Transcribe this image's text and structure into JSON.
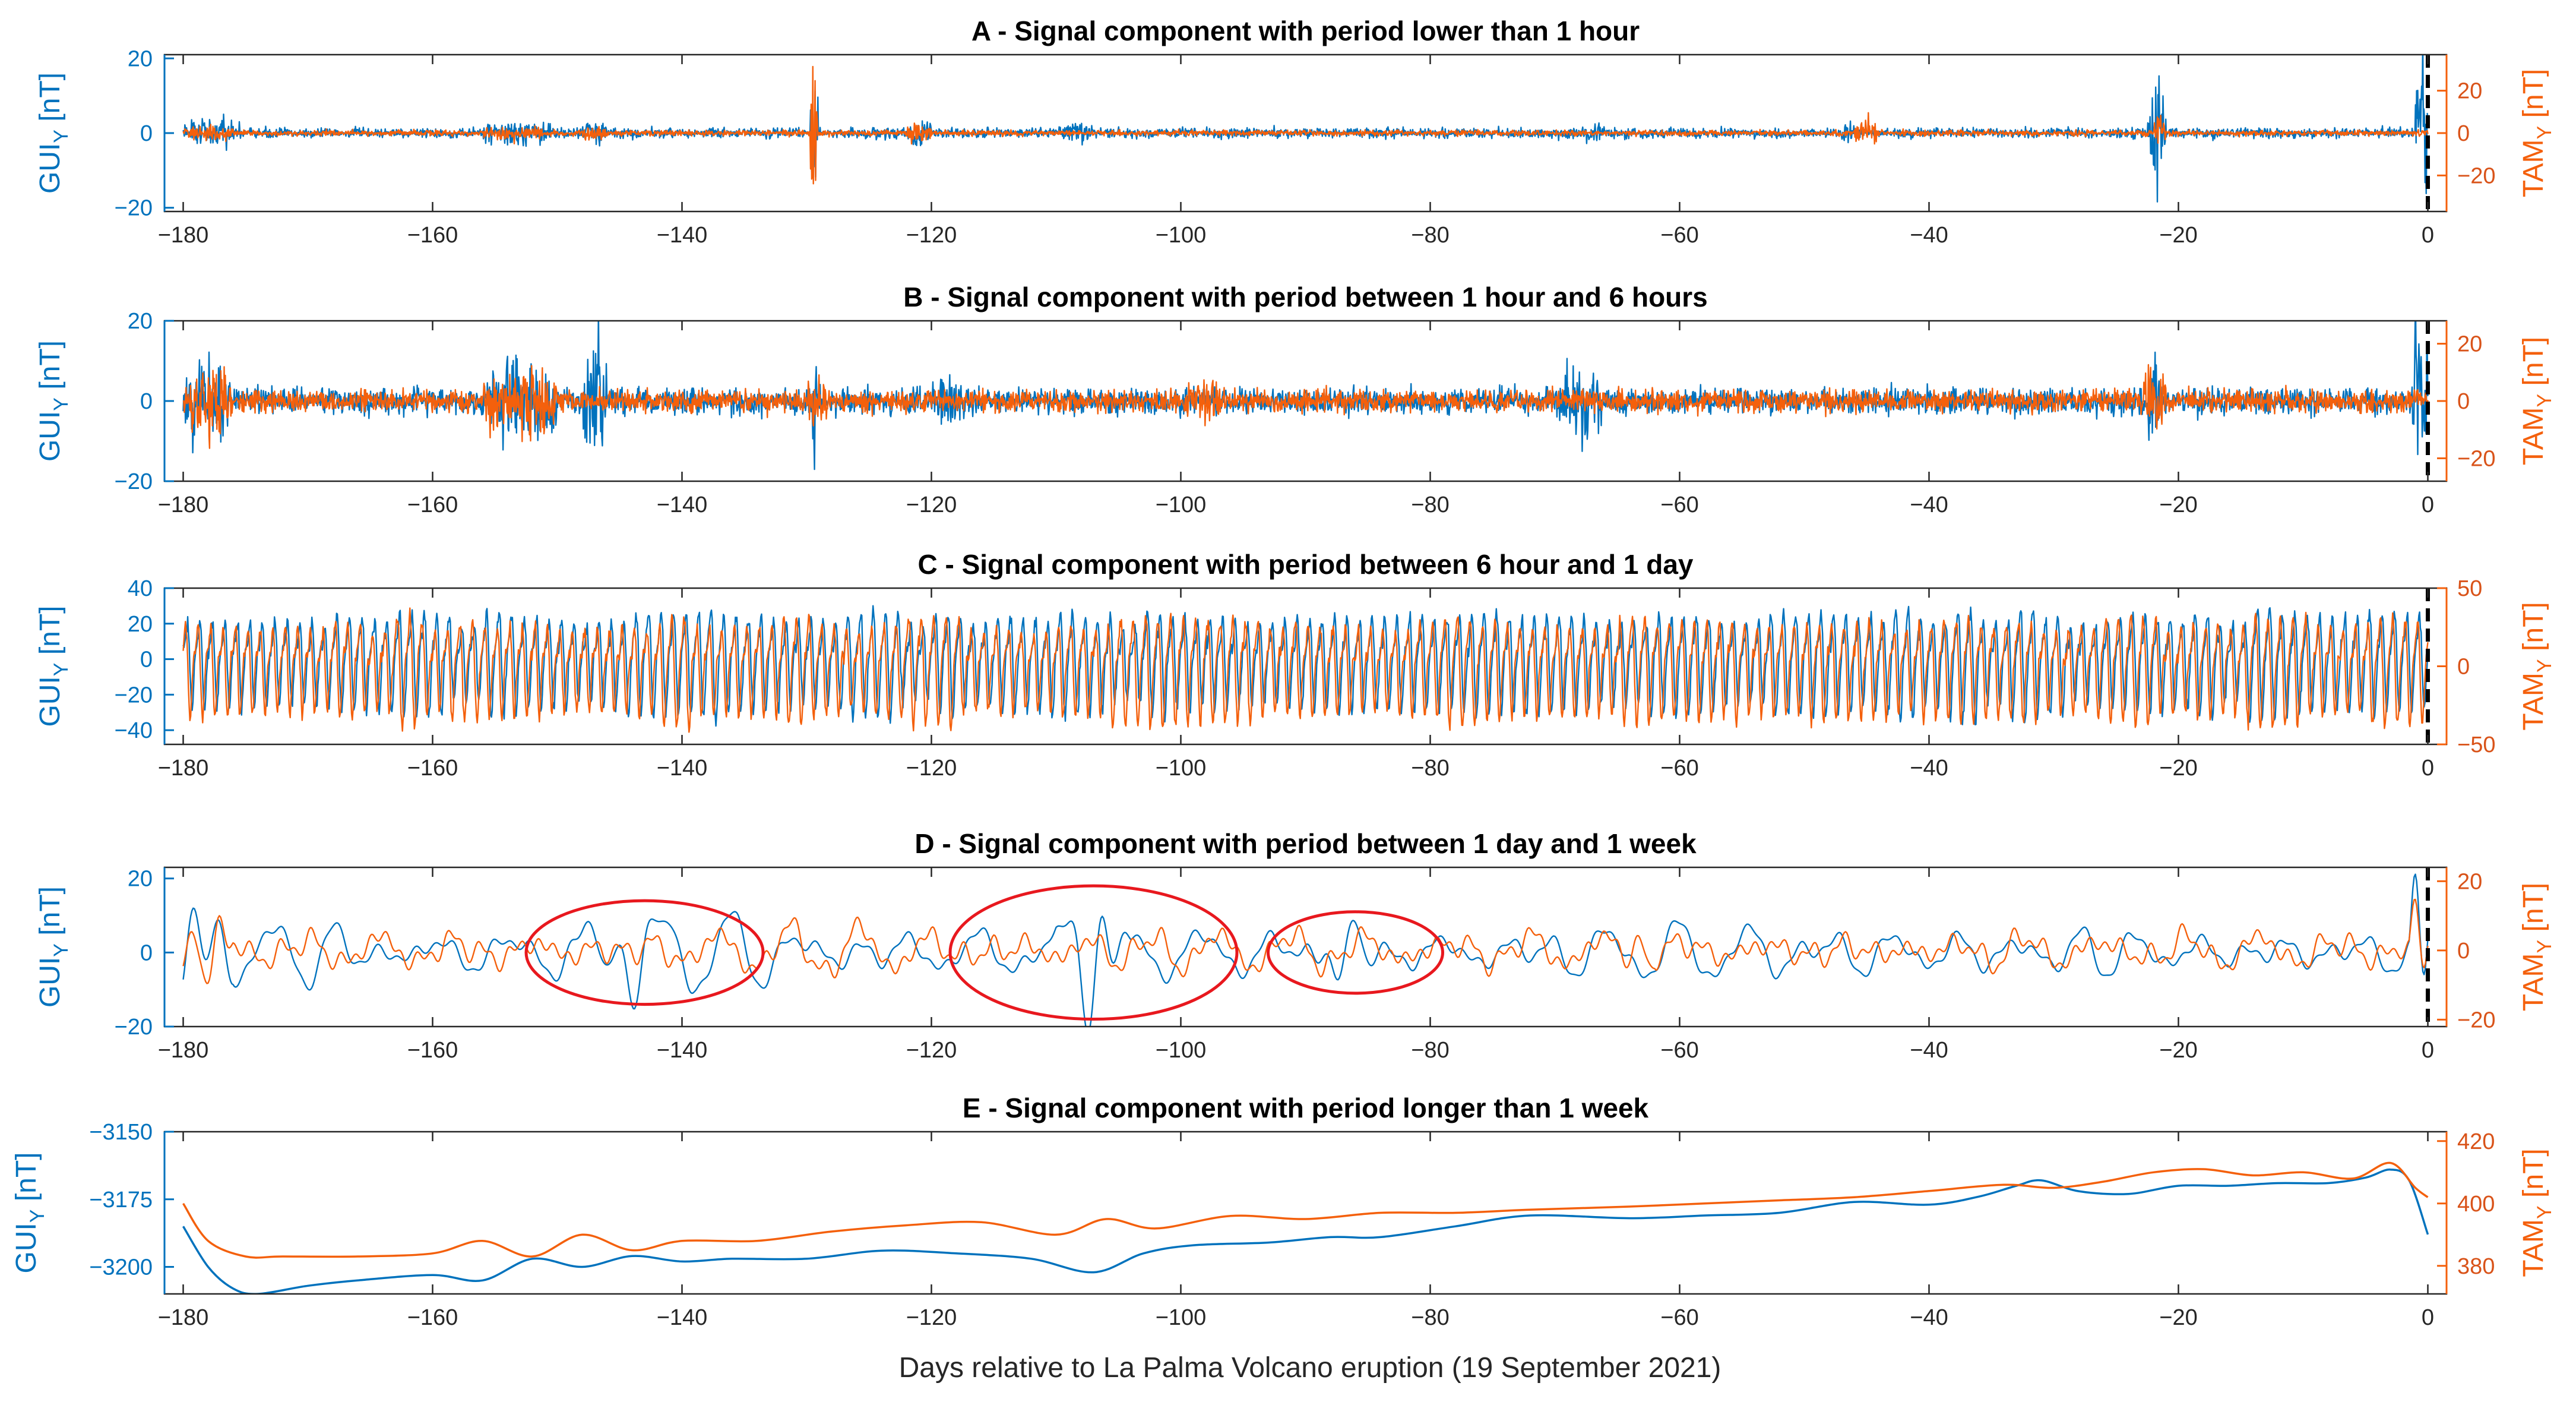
{
  "colors": {
    "gui": "#0072BD",
    "tam": "#F4600C",
    "highlight": "#E8181E",
    "marker": "#000000"
  },
  "ylabels": {
    "gui_main": "GUI",
    "tam_main": "TAM",
    "sub": "Y",
    "unit": " [nT]"
  },
  "xlabel": "Days relative to La Palma Volcano eruption (19 September 2021)",
  "chart_data": [
    {
      "type": "line",
      "title": "A - Signal component with period lower than 1 hour",
      "xlim": [
        -181.5,
        1.5
      ],
      "xticks": [
        -180,
        -160,
        -140,
        -120,
        -100,
        -80,
        -60,
        -40,
        -20,
        0
      ],
      "y_left": {
        "label": "GUIY [nT]",
        "lim": [
          -21,
          21
        ],
        "ticks": [
          -20,
          0,
          20
        ]
      },
      "y_right": {
        "label": "TAMY [nT]",
        "lim": [
          -37,
          37
        ],
        "ticks": [
          -20,
          0,
          20
        ]
      },
      "event_marker_x": 0,
      "series": [
        {
          "axis": "left",
          "style": "noise",
          "base": 0,
          "noise": 0.9,
          "osc": [],
          "bursts": [
            [
              -180,
              -175,
              3
            ],
            [
              -156,
              -150,
              2.5
            ],
            [
              -148,
              -146,
              2.2
            ],
            [
              -129.7,
              -129.1,
              20
            ],
            [
              -122,
              -120,
              2
            ],
            [
              -110,
              -107,
              1.8
            ],
            [
              -68,
              -66,
              2
            ],
            [
              -47,
              -46,
              2.6
            ],
            [
              -22.5,
              -21,
              12
            ],
            [
              -1,
              0,
              16
            ]
          ]
        },
        {
          "axis": "right",
          "style": "noise",
          "base": 0,
          "noise": 0.9,
          "osc": [],
          "bursts": [
            [
              -180,
              -176,
              3
            ],
            [
              -156,
              -151,
              3
            ],
            [
              -148,
              -146,
              3
            ],
            [
              -129.7,
              -129.1,
              30
            ],
            [
              -122,
              -120,
              4
            ],
            [
              -46,
              -44,
              5
            ],
            [
              -22,
              -21,
              7
            ]
          ]
        }
      ]
    },
    {
      "type": "line",
      "title": "B - Signal component with period between 1 hour and 6 hours",
      "xlim": [
        -181.5,
        1.5
      ],
      "xticks": [
        -180,
        -160,
        -140,
        -120,
        -100,
        -80,
        -60,
        -40,
        -20,
        0
      ],
      "y_left": {
        "label": "GUIY [nT]",
        "lim": [
          -20,
          20
        ],
        "ticks": [
          -20,
          0,
          20
        ]
      },
      "y_right": {
        "label": "TAMY [nT]",
        "lim": [
          -28,
          28
        ],
        "ticks": [
          -20,
          0,
          20
        ]
      },
      "event_marker_x": 0,
      "series": [
        {
          "axis": "left",
          "style": "noise",
          "base": 0,
          "noise": 2.2,
          "osc": [],
          "bursts": [
            [
              -180,
              -176,
              7
            ],
            [
              -156,
              -150,
              8
            ],
            [
              -148,
              -146,
              12
            ],
            [
              -129.6,
              -129.2,
              18
            ],
            [
              -120,
              -116,
              4
            ],
            [
              -70,
              -66,
              6
            ],
            [
              -22.5,
              -21.5,
              9
            ],
            [
              -1.5,
              0,
              14
            ]
          ]
        },
        {
          "axis": "right",
          "style": "noise",
          "base": 0,
          "noise": 2.6,
          "osc": [],
          "bursts": [
            [
              -180,
              -176,
              9
            ],
            [
              -156,
              -150,
              9
            ],
            [
              -130,
              -128,
              7
            ],
            [
              -100,
              -96,
              4
            ],
            [
              -23,
              -21,
              8
            ]
          ]
        }
      ]
    },
    {
      "type": "line",
      "title": "C - Signal component with period between 6 hour and 1 day",
      "xlim": [
        -181.5,
        1.5
      ],
      "xticks": [
        -180,
        -160,
        -140,
        -120,
        -100,
        -80,
        -60,
        -40,
        -20,
        0
      ],
      "y_left": {
        "label": "GUIY [nT]",
        "lim": [
          -48,
          40
        ],
        "ticks": [
          -40,
          -20,
          0,
          20,
          40
        ]
      },
      "y_right": {
        "label": "TAMY [nT]",
        "lim": [
          -50,
          50
        ],
        "ticks": [
          -50,
          0,
          50
        ]
      },
      "event_marker_x": 0,
      "series": [
        {
          "axis": "left",
          "style": "daily",
          "base": 0,
          "noise": 3,
          "amp": 24,
          "period": 1.0,
          "phase": 0.0
        },
        {
          "axis": "right",
          "style": "daily",
          "base": 0,
          "noise": 3,
          "amp": 28,
          "period": 1.0,
          "phase": 0.15
        }
      ]
    },
    {
      "type": "line",
      "title": "D - Signal component with period between 1 day and 1 week",
      "xlim": [
        -181.5,
        1.5
      ],
      "xticks": [
        -180,
        -160,
        -140,
        -120,
        -100,
        -80,
        -60,
        -40,
        -20,
        0
      ],
      "y_left": {
        "label": "GUIY [nT]",
        "lim": [
          -20,
          23
        ],
        "ticks": [
          -20,
          0,
          20
        ]
      },
      "y_right": {
        "label": "TAMY [nT]",
        "lim": [
          -22,
          24
        ],
        "ticks": [
          -20,
          0,
          20
        ]
      },
      "event_marker_x": 0,
      "highlight_ellipses": [
        {
          "cx": -143,
          "cy": 0,
          "rx": 9.5,
          "ry": 14
        },
        {
          "cx": -107,
          "cy": 0,
          "rx": 11.5,
          "ry": 18
        },
        {
          "cx": -86,
          "cy": 0,
          "rx": 7,
          "ry": 11
        }
      ],
      "series": [
        {
          "axis": "left",
          "style": "smooth",
          "base": 0,
          "noise": 4.5,
          "osc": [],
          "bursts": [
            [
              -181,
              -176,
              12
            ],
            [
              -149,
              -139,
              6
            ],
            [
              -110,
              -104,
              12
            ],
            [
              -90,
              -83,
              5
            ],
            [
              -1.5,
              0,
              22
            ]
          ]
        },
        {
          "axis": "right",
          "style": "smooth",
          "base": 0,
          "noise": 4,
          "osc": [],
          "bursts": [
            [
              -181,
              -176,
              10
            ],
            [
              -64,
              -62,
              6
            ],
            [
              -1.5,
              0,
              18
            ]
          ]
        }
      ]
    },
    {
      "type": "line",
      "title": "E - Signal component with period longer than 1 week",
      "xlim": [
        -181.5,
        1.5
      ],
      "xticks": [
        -180,
        -160,
        -140,
        -120,
        -100,
        -80,
        -60,
        -40,
        -20,
        0
      ],
      "y_left": {
        "label": "GUIY [nT]",
        "lim": [
          -3210,
          -3150
        ],
        "ticks": [
          -3200,
          -3175,
          -3150
        ]
      },
      "y_right": {
        "label": "TAMY [nT]",
        "lim": [
          371,
          423
        ],
        "ticks": [
          380,
          400,
          420
        ]
      },
      "series": [
        {
          "axis": "left",
          "style": "trend",
          "x": [
            -180,
            -178,
            -176,
            -174,
            -170,
            -166,
            -160,
            -156,
            -152,
            -148,
            -144,
            -140,
            -136,
            -130,
            -124,
            -118,
            -112,
            -107,
            -103,
            -99,
            -93,
            -88,
            -84,
            -78,
            -72,
            -64,
            -58,
            -52,
            -46,
            -40,
            -36,
            -33,
            -31,
            -28,
            -24,
            -20,
            -16,
            -12,
            -8,
            -5,
            -3,
            -1.5,
            0
          ],
          "y": [
            -3185,
            -3200,
            -3208,
            -3210,
            -3207,
            -3205,
            -3203,
            -3205,
            -3197,
            -3200,
            -3196,
            -3198,
            -3197,
            -3197,
            -3194,
            -3195,
            -3197,
            -3202,
            -3195,
            -3192,
            -3191,
            -3189,
            -3189,
            -3185,
            -3181,
            -3182,
            -3181,
            -3180,
            -3176,
            -3177,
            -3174,
            -3170,
            -3168,
            -3172,
            -3173,
            -3170,
            -3170,
            -3169,
            -3169,
            -3167,
            -3164,
            -3168,
            -3188
          ]
        },
        {
          "axis": "right",
          "style": "trend",
          "x": [
            -180,
            -178,
            -175,
            -172,
            -166,
            -160,
            -156,
            -152,
            -148,
            -144,
            -140,
            -134,
            -128,
            -122,
            -116,
            -110,
            -106,
            -102,
            -96,
            -90,
            -84,
            -78,
            -72,
            -64,
            -58,
            -52,
            -46,
            -40,
            -34,
            -30,
            -26,
            -22,
            -18,
            -14,
            -10,
            -6,
            -3,
            -1,
            0
          ],
          "y": [
            400,
            388,
            383,
            383,
            383,
            384,
            388,
            383,
            390,
            385,
            388,
            388,
            391,
            393,
            394,
            390,
            395,
            392,
            396,
            395,
            397,
            397,
            398,
            399,
            400,
            401,
            402,
            404,
            406,
            405,
            407,
            410,
            411,
            409,
            410,
            408,
            413,
            405,
            402
          ]
        }
      ]
    }
  ]
}
